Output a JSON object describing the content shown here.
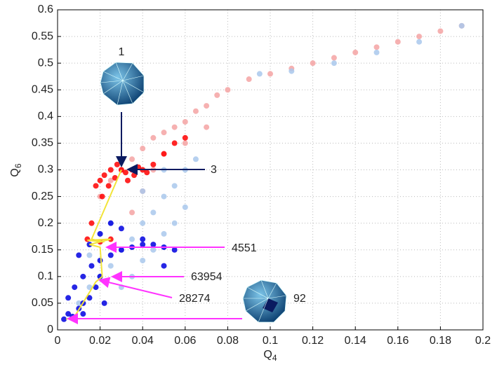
{
  "chart_data": {
    "type": "scatter",
    "x_label": {
      "text": "Q",
      "subscript": "4"
    },
    "y_label": {
      "text": "Q",
      "subscript": "6"
    },
    "xlim": [
      0,
      0.2
    ],
    "xticks": [
      0,
      0.02,
      0.04,
      0.06,
      0.08,
      0.1,
      0.12,
      0.14,
      0.16,
      0.18,
      0.2
    ],
    "ylim": [
      0,
      0.6
    ],
    "yticks": [
      0,
      0.05,
      0.1,
      0.15,
      0.2,
      0.25,
      0.3,
      0.35,
      0.4,
      0.45,
      0.5,
      0.55,
      0.6
    ],
    "grid": true,
    "series": [
      {
        "color": "#f4a3a3",
        "x": [
          0.02,
          0.025,
          0.03,
          0.035,
          0.04,
          0.045,
          0.05,
          0.055,
          0.06,
          0.065,
          0.07,
          0.075,
          0.08,
          0.09,
          0.1,
          0.11,
          0.12,
          0.13,
          0.14,
          0.15,
          0.16,
          0.17,
          0.18,
          0.19,
          0.045,
          0.05,
          0.06,
          0.07,
          0.04,
          0.035
        ],
        "y": [
          0.25,
          0.28,
          0.3,
          0.32,
          0.34,
          0.36,
          0.37,
          0.38,
          0.39,
          0.41,
          0.42,
          0.44,
          0.45,
          0.47,
          0.48,
          0.49,
          0.5,
          0.51,
          0.52,
          0.53,
          0.54,
          0.55,
          0.56,
          0.57,
          0.3,
          0.33,
          0.35,
          0.38,
          0.26,
          0.22
        ]
      },
      {
        "color": "#a9c8ec",
        "x": [
          0.01,
          0.015,
          0.02,
          0.025,
          0.03,
          0.035,
          0.04,
          0.045,
          0.05,
          0.055,
          0.06,
          0.065,
          0.03,
          0.035,
          0.04,
          0.045,
          0.05,
          0.055,
          0.06,
          0.025,
          0.02,
          0.015,
          0.04,
          0.05,
          0.095,
          0.11,
          0.13,
          0.15,
          0.17,
          0.19
        ],
        "y": [
          0.05,
          0.08,
          0.1,
          0.12,
          0.15,
          0.17,
          0.2,
          0.22,
          0.25,
          0.27,
          0.3,
          0.32,
          0.08,
          0.1,
          0.13,
          0.15,
          0.18,
          0.2,
          0.23,
          0.2,
          0.18,
          0.14,
          0.26,
          0.3,
          0.48,
          0.485,
          0.5,
          0.52,
          0.54,
          0.57
        ]
      },
      {
        "color": "#ff0000",
        "x": [
          0.018,
          0.02,
          0.022,
          0.025,
          0.028,
          0.03,
          0.032,
          0.035,
          0.038,
          0.04,
          0.042,
          0.045,
          0.024,
          0.027,
          0.033,
          0.036,
          0.03,
          0.021,
          0.016,
          0.014,
          0.02,
          0.025,
          0.05,
          0.055,
          0.06
        ],
        "y": [
          0.27,
          0.28,
          0.29,
          0.3,
          0.31,
          0.3,
          0.295,
          0.3,
          0.305,
          0.3,
          0.295,
          0.31,
          0.27,
          0.285,
          0.28,
          0.29,
          0.32,
          0.25,
          0.2,
          0.17,
          0.165,
          0.17,
          0.33,
          0.35,
          0.36
        ]
      },
      {
        "color": "#0000e0",
        "x": [
          0.003,
          0.005,
          0.007,
          0.01,
          0.012,
          0.015,
          0.018,
          0.02,
          0.005,
          0.008,
          0.012,
          0.016,
          0.02,
          0.025,
          0.03,
          0.035,
          0.04,
          0.045,
          0.05,
          0.055,
          0.01,
          0.015,
          0.02,
          0.025,
          0.03,
          0.04,
          0.05,
          0.008,
          0.012,
          0.022
        ],
        "y": [
          0.02,
          0.03,
          0.025,
          0.04,
          0.05,
          0.06,
          0.08,
          0.1,
          0.06,
          0.08,
          0.1,
          0.12,
          0.13,
          0.14,
          0.15,
          0.155,
          0.16,
          0.16,
          0.155,
          0.15,
          0.14,
          0.16,
          0.18,
          0.2,
          0.19,
          0.17,
          0.12,
          0.02,
          0.03,
          0.05
        ]
      }
    ],
    "path": {
      "color": "#f2e43a",
      "x": [
        0.004,
        0.008,
        0.018,
        0.021,
        0.02,
        0.015,
        0.025,
        0.014,
        0.022,
        0.016,
        0.03
      ],
      "y": [
        0.02,
        0.025,
        0.09,
        0.1,
        0.155,
        0.16,
        0.17,
        0.168,
        0.165,
        0.17,
        0.3
      ]
    },
    "annotations": [
      "1",
      "3",
      "4551",
      "63954",
      "28274",
      "92"
    ]
  }
}
